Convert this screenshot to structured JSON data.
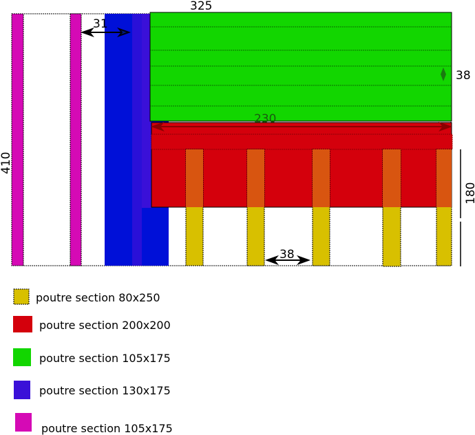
{
  "dimensions": {
    "top_width": "325",
    "gap_left": "31",
    "green_spacing": "38",
    "red_width": "230",
    "red_height": "180",
    "total_height": "410",
    "post_spacing": "38"
  },
  "legend": [
    {
      "label": "poutre section 80x250",
      "color": "#d8c000"
    },
    {
      "label": "poutre section 200x200",
      "color": "#d4000c"
    },
    {
      "label": "poutre section 105x175",
      "color": "#12d600"
    },
    {
      "label": "poutre section 130x175",
      "color": "#3a10d8"
    },
    {
      "label": "poutre section 105x175",
      "color": "#d50ab5"
    }
  ],
  "colors": {
    "magenta": "#d50ab5",
    "blue": "#0010d8",
    "violet": "#3a10d8",
    "green": "#12d600",
    "red": "#d4000c",
    "yellow": "#d8c000",
    "orange_overlap": "#d85510"
  }
}
